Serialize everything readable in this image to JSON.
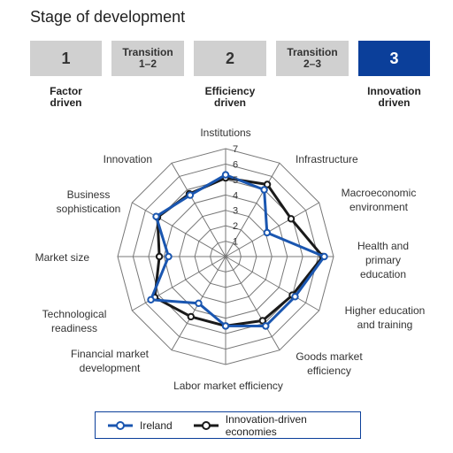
{
  "page_title": "Stage of development",
  "stages": [
    {
      "label": "1",
      "kind": "num",
      "active": false
    },
    {
      "label": "Transition\n1–2",
      "kind": "trn",
      "active": false
    },
    {
      "label": "2",
      "kind": "num",
      "active": false
    },
    {
      "label": "Transition\n2–3",
      "kind": "trn",
      "active": false
    },
    {
      "label": "3",
      "kind": "num",
      "active": true
    }
  ],
  "stage_captions": [
    "Factor\ndriven",
    "Efficiency\ndriven",
    "Innovation\ndriven"
  ],
  "colors": {
    "ireland": "#1a56b0",
    "innovation": "#1a1a1a",
    "grid": "#777777",
    "active_stage": "#0b3f9a"
  },
  "chart_data": {
    "type": "radar",
    "axes": [
      "Institutions",
      "Infrastructure",
      "Macroeconomic environment",
      "Health and primary education",
      "Higher education and training",
      "Goods market efficiency",
      "Labor market efficiency",
      "Financial market development",
      "Technological readiness",
      "Market size",
      "Business sophistication",
      "Innovation"
    ],
    "axis_label_lines": [
      [
        "Institutions"
      ],
      [
        "Infrastructure"
      ],
      [
        "Macroeconomic",
        "environment"
      ],
      [
        "Health and",
        "primary",
        "education"
      ],
      [
        "Higher education",
        "and training"
      ],
      [
        "Goods market",
        "efficiency"
      ],
      [
        "Labor market efficiency"
      ],
      [
        "Financial market",
        "development"
      ],
      [
        "Technological",
        "readiness"
      ],
      [
        "Market size"
      ],
      [
        "Business",
        "sophistication"
      ],
      [
        "Innovation"
      ]
    ],
    "scale": {
      "min": 1,
      "max": 7,
      "ticks": [
        "1",
        "2",
        "3",
        "4",
        "5",
        "6",
        "7"
      ]
    },
    "series": [
      {
        "name": "Ireland",
        "values": [
          5.3,
          5.0,
          3.1,
          6.4,
          5.2,
          5.2,
          4.5,
          3.5,
          5.6,
          3.7,
          5.2,
          4.6
        ]
      },
      {
        "name": "Innovation-driven economies",
        "values": [
          5.1,
          5.4,
          4.9,
          6.3,
          5.0,
          4.8,
          4.5,
          4.5,
          5.3,
          4.3,
          5.1,
          4.7
        ]
      }
    ]
  }
}
